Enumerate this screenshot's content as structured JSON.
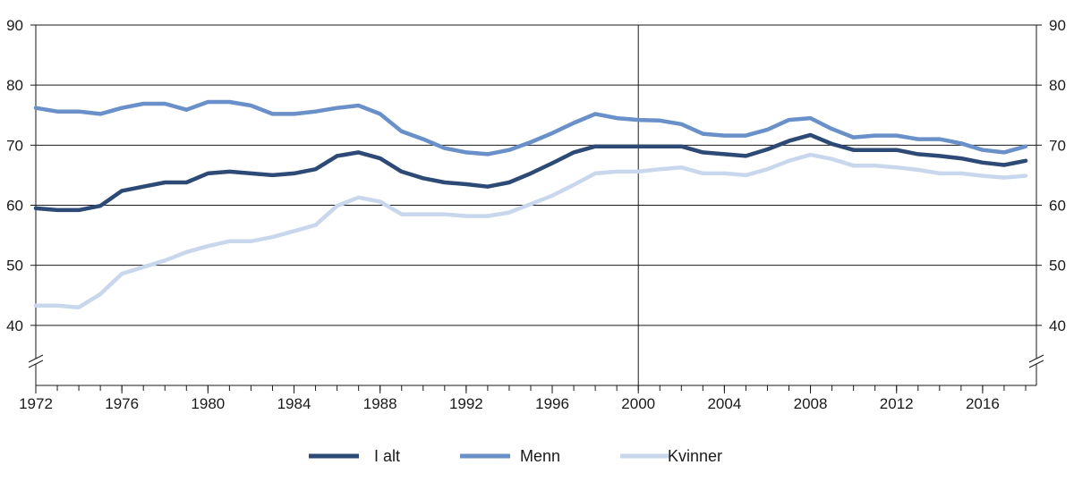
{
  "chart_data": {
    "type": "line",
    "x": [
      1972,
      1973,
      1974,
      1975,
      1976,
      1977,
      1978,
      1979,
      1980,
      1981,
      1982,
      1983,
      1984,
      1985,
      1986,
      1987,
      1988,
      1989,
      1990,
      1991,
      1992,
      1993,
      1994,
      1995,
      1996,
      1997,
      1998,
      1999,
      2000,
      2001,
      2002,
      2003,
      2004,
      2005,
      2006,
      2007,
      2008,
      2009,
      2010,
      2011,
      2012,
      2013,
      2014,
      2015,
      2016,
      2017,
      2018
    ],
    "series": [
      {
        "name": "I alt",
        "color": "#2c4a75",
        "values": [
          59.5,
          59.2,
          59.2,
          59.9,
          62.4,
          63.1,
          63.8,
          63.8,
          65.3,
          65.6,
          65.3,
          65.0,
          65.3,
          66.0,
          68.2,
          68.8,
          67.8,
          65.6,
          64.5,
          63.8,
          63.5,
          63.1,
          63.8,
          65.3,
          67.0,
          68.8,
          69.8,
          69.8,
          69.8,
          69.8,
          69.8,
          68.8,
          68.5,
          68.2,
          69.3,
          70.7,
          71.7,
          70.2,
          69.2,
          69.2,
          69.2,
          68.5,
          68.2,
          67.8,
          67.1,
          66.7,
          67.4
        ]
      },
      {
        "name": "Menn",
        "color": "#6990c8",
        "values": [
          76.2,
          75.6,
          75.6,
          75.2,
          76.2,
          76.9,
          76.9,
          75.9,
          77.2,
          77.2,
          76.6,
          75.2,
          75.2,
          75.6,
          76.2,
          76.6,
          75.2,
          72.3,
          71.0,
          69.5,
          68.8,
          68.5,
          69.2,
          70.5,
          72.0,
          73.7,
          75.2,
          74.5,
          74.2,
          74.1,
          73.5,
          71.9,
          71.6,
          71.6,
          72.6,
          74.2,
          74.5,
          72.7,
          71.3,
          71.6,
          71.6,
          71.0,
          71.0,
          70.3,
          69.2,
          68.8,
          69.8
        ]
      },
      {
        "name": "Kvinner",
        "color": "#c9d7ed",
        "values": [
          43.3,
          43.3,
          43.0,
          45.2,
          48.6,
          49.7,
          50.8,
          52.2,
          53.2,
          54.0,
          54.0,
          54.7,
          55.7,
          56.7,
          59.9,
          61.3,
          60.6,
          58.5,
          58.5,
          58.5,
          58.2,
          58.2,
          58.8,
          60.2,
          61.6,
          63.4,
          65.3,
          65.6,
          65.6,
          66.0,
          66.3,
          65.3,
          65.3,
          65.0,
          66.0,
          67.4,
          68.4,
          67.7,
          66.6,
          66.6,
          66.3,
          65.9,
          65.3,
          65.3,
          64.9,
          64.6,
          64.9
        ]
      }
    ],
    "xticks": [
      "1972",
      "1976",
      "1980",
      "1984",
      "1988",
      "1992",
      "1996",
      "2000",
      "2004",
      "2008",
      "2012",
      "2016"
    ],
    "yticks": [
      "40",
      "50",
      "60",
      "70",
      "80",
      "90"
    ],
    "ylim": [
      30,
      90
    ],
    "xlim": [
      1972,
      2018.5
    ],
    "axis_break": true,
    "grid": "horizontal",
    "reference_line_x": 2000,
    "legend_position": "bottom"
  }
}
